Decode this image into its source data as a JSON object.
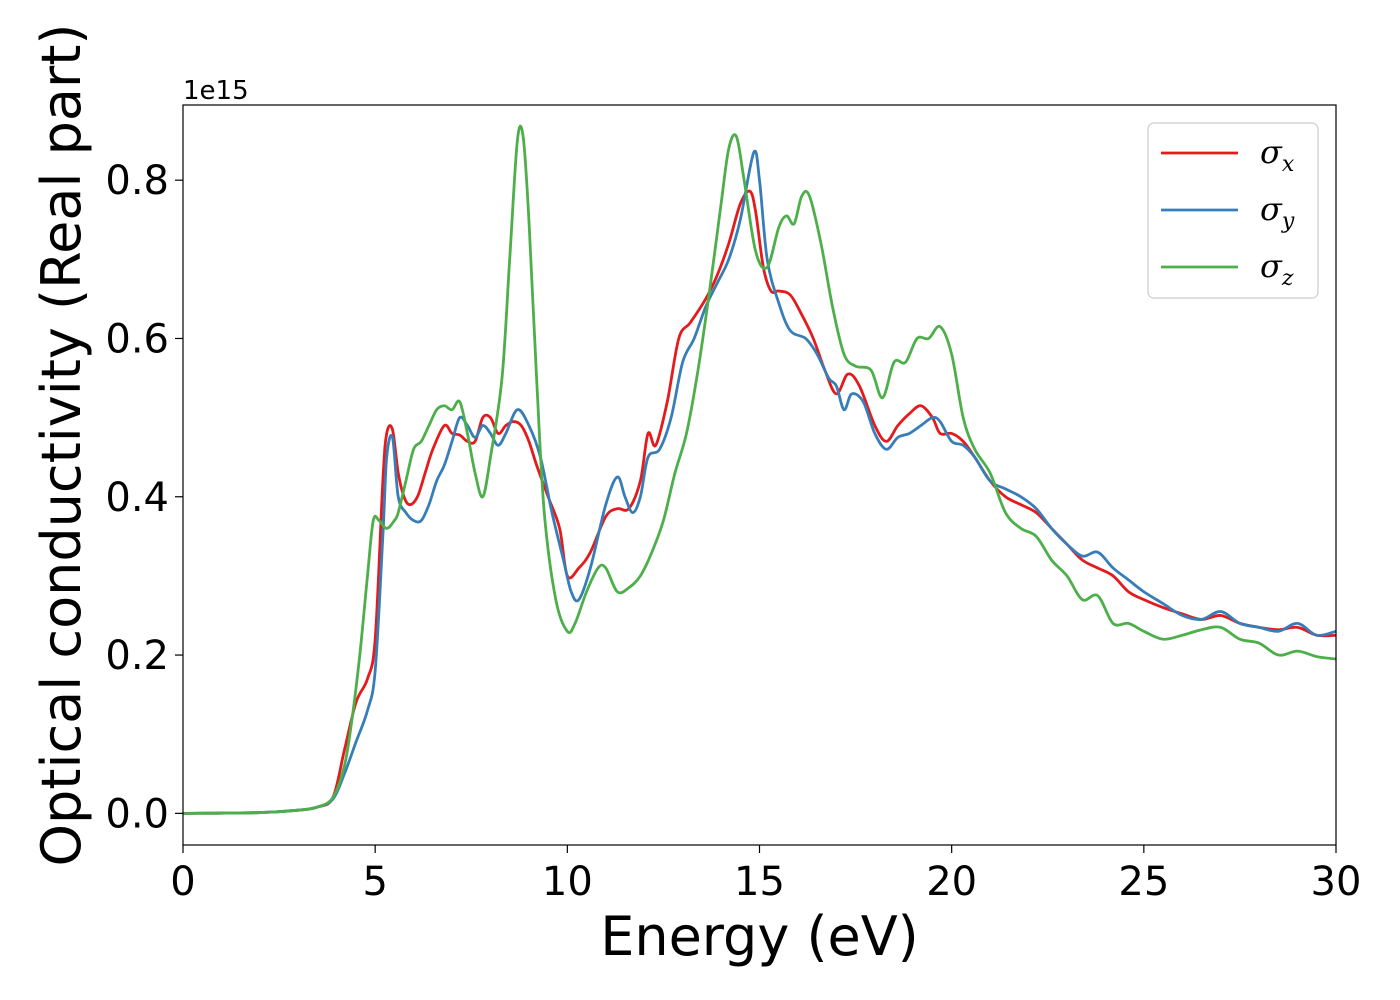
{
  "chart_data": {
    "type": "line",
    "title": "",
    "xlabel": "Energy (eV)",
    "ylabel": "Optical conductivity (Real part)",
    "y_offset_label": "1e15",
    "xlim": [
      0,
      30
    ],
    "ylim": [
      -0.04,
      0.895
    ],
    "xticks": [
      0,
      5,
      10,
      15,
      20,
      25,
      30
    ],
    "xtick_labels": [
      "0",
      "5",
      "10",
      "15",
      "20",
      "25",
      "30"
    ],
    "yticks": [
      0.0,
      0.2,
      0.4,
      0.6,
      0.8
    ],
    "ytick_labels": [
      "0.0",
      "0.2",
      "0.4",
      "0.6",
      "0.8"
    ],
    "grid": false,
    "legend_position": "top-right",
    "series": [
      {
        "name": "σx",
        "symbol": "σ",
        "subscript": "x",
        "color": "#e41a1c",
        "x": [
          0,
          2,
          3,
          3.5,
          3.9,
          4.2,
          4.5,
          4.8,
          5.0,
          5.2,
          5.3,
          5.45,
          5.6,
          5.75,
          5.9,
          6.1,
          6.3,
          6.5,
          6.8,
          7.0,
          7.2,
          7.4,
          7.6,
          7.8,
          8.0,
          8.2,
          8.4,
          8.6,
          8.8,
          9.0,
          9.2,
          9.5,
          9.8,
          10.0,
          10.3,
          10.6,
          11.0,
          11.3,
          11.6,
          11.9,
          12.1,
          12.3,
          12.6,
          12.9,
          13.2,
          13.6,
          13.9,
          14.2,
          14.5,
          14.75,
          14.9,
          15.1,
          15.3,
          15.5,
          15.8,
          16.1,
          16.4,
          16.7,
          17.0,
          17.3,
          17.6,
          18.0,
          18.3,
          18.6,
          18.9,
          19.2,
          19.5,
          19.7,
          20.0,
          20.3,
          20.6,
          21.0,
          21.4,
          21.8,
          22.2,
          22.6,
          23.0,
          23.4,
          23.8,
          24.2,
          24.6,
          25.0,
          25.5,
          26.0,
          26.5,
          27.0,
          27.5,
          28.0,
          28.5,
          29.0,
          29.5,
          30.0
        ],
        "values": [
          0.0,
          0.001,
          0.004,
          0.008,
          0.02,
          0.08,
          0.14,
          0.17,
          0.22,
          0.42,
          0.48,
          0.485,
          0.43,
          0.4,
          0.39,
          0.4,
          0.43,
          0.46,
          0.49,
          0.48,
          0.478,
          0.47,
          0.47,
          0.5,
          0.5,
          0.48,
          0.49,
          0.495,
          0.49,
          0.47,
          0.44,
          0.4,
          0.36,
          0.3,
          0.31,
          0.33,
          0.375,
          0.385,
          0.385,
          0.42,
          0.48,
          0.465,
          0.52,
          0.6,
          0.62,
          0.65,
          0.68,
          0.72,
          0.77,
          0.786,
          0.76,
          0.69,
          0.66,
          0.66,
          0.655,
          0.63,
          0.6,
          0.56,
          0.53,
          0.555,
          0.54,
          0.49,
          0.47,
          0.49,
          0.505,
          0.515,
          0.5,
          0.48,
          0.48,
          0.47,
          0.45,
          0.42,
          0.4,
          0.39,
          0.38,
          0.36,
          0.34,
          0.32,
          0.31,
          0.3,
          0.28,
          0.27,
          0.26,
          0.252,
          0.245,
          0.25,
          0.24,
          0.235,
          0.232,
          0.235,
          0.225,
          0.225
        ]
      },
      {
        "name": "σy",
        "symbol": "σ",
        "subscript": "y",
        "color": "#377eb8",
        "x": [
          0,
          2,
          3,
          3.5,
          3.9,
          4.2,
          4.5,
          4.8,
          5.0,
          5.2,
          5.3,
          5.45,
          5.6,
          5.8,
          6.0,
          6.2,
          6.4,
          6.6,
          6.8,
          7.0,
          7.2,
          7.4,
          7.6,
          7.8,
          8.0,
          8.2,
          8.4,
          8.7,
          9.0,
          9.3,
          9.6,
          9.9,
          10.1,
          10.3,
          10.6,
          11.0,
          11.3,
          11.5,
          11.7,
          11.9,
          12.1,
          12.4,
          12.7,
          13.0,
          13.3,
          13.6,
          13.9,
          14.2,
          14.5,
          14.85,
          15.0,
          15.2,
          15.5,
          15.8,
          16.2,
          16.5,
          16.8,
          17.0,
          17.2,
          17.4,
          17.7,
          18.0,
          18.3,
          18.6,
          18.9,
          19.2,
          19.5,
          19.7,
          20.0,
          20.3,
          20.6,
          21.0,
          21.4,
          21.8,
          22.2,
          22.6,
          23.0,
          23.4,
          23.8,
          24.2,
          24.6,
          25.0,
          25.5,
          26.0,
          26.5,
          27.0,
          27.5,
          28.0,
          28.5,
          29.0,
          29.5,
          30.0
        ],
        "values": [
          0.0,
          0.001,
          0.004,
          0.008,
          0.018,
          0.05,
          0.09,
          0.13,
          0.18,
          0.35,
          0.45,
          0.475,
          0.4,
          0.38,
          0.37,
          0.37,
          0.39,
          0.42,
          0.44,
          0.47,
          0.5,
          0.49,
          0.475,
          0.49,
          0.48,
          0.465,
          0.48,
          0.51,
          0.49,
          0.45,
          0.38,
          0.32,
          0.28,
          0.27,
          0.31,
          0.39,
          0.425,
          0.4,
          0.38,
          0.4,
          0.45,
          0.46,
          0.5,
          0.57,
          0.6,
          0.64,
          0.67,
          0.7,
          0.75,
          0.835,
          0.8,
          0.7,
          0.645,
          0.61,
          0.6,
          0.58,
          0.55,
          0.54,
          0.51,
          0.53,
          0.52,
          0.48,
          0.46,
          0.475,
          0.48,
          0.49,
          0.5,
          0.495,
          0.47,
          0.465,
          0.45,
          0.42,
          0.41,
          0.4,
          0.385,
          0.36,
          0.34,
          0.325,
          0.33,
          0.31,
          0.295,
          0.28,
          0.265,
          0.25,
          0.245,
          0.255,
          0.24,
          0.235,
          0.23,
          0.24,
          0.225,
          0.23
        ]
      },
      {
        "name": "σz",
        "symbol": "σ",
        "subscript": "z",
        "color": "#4daf4a",
        "x": [
          0,
          2,
          3,
          3.5,
          3.9,
          4.2,
          4.4,
          4.6,
          4.8,
          4.95,
          5.1,
          5.3,
          5.5,
          5.6,
          5.8,
          6.0,
          6.2,
          6.4,
          6.6,
          6.8,
          7.0,
          7.2,
          7.4,
          7.6,
          7.8,
          8.0,
          8.3,
          8.5,
          8.7,
          8.85,
          9.0,
          9.2,
          9.4,
          9.7,
          10.0,
          10.2,
          10.5,
          10.8,
          11.0,
          11.3,
          11.6,
          11.9,
          12.2,
          12.5,
          12.8,
          13.1,
          13.4,
          13.7,
          14.0,
          14.2,
          14.4,
          14.6,
          14.9,
          15.2,
          15.5,
          15.7,
          15.9,
          16.1,
          16.3,
          16.6,
          16.9,
          17.2,
          17.5,
          17.9,
          18.2,
          18.5,
          18.8,
          19.1,
          19.4,
          19.7,
          20.0,
          20.3,
          20.6,
          21.0,
          21.4,
          21.8,
          22.2,
          22.6,
          23.0,
          23.4,
          23.8,
          24.2,
          24.6,
          25.0,
          25.5,
          26.0,
          26.5,
          27.0,
          27.5,
          28.0,
          28.5,
          29.0,
          29.5,
          30.0
        ],
        "values": [
          0.0,
          0.001,
          0.004,
          0.008,
          0.02,
          0.06,
          0.12,
          0.2,
          0.3,
          0.37,
          0.37,
          0.36,
          0.37,
          0.38,
          0.42,
          0.46,
          0.47,
          0.49,
          0.51,
          0.515,
          0.51,
          0.52,
          0.48,
          0.43,
          0.4,
          0.45,
          0.55,
          0.7,
          0.85,
          0.855,
          0.75,
          0.55,
          0.38,
          0.27,
          0.23,
          0.24,
          0.28,
          0.31,
          0.31,
          0.28,
          0.285,
          0.3,
          0.33,
          0.37,
          0.43,
          0.48,
          0.56,
          0.66,
          0.77,
          0.84,
          0.855,
          0.8,
          0.71,
          0.69,
          0.74,
          0.755,
          0.745,
          0.78,
          0.78,
          0.72,
          0.64,
          0.58,
          0.565,
          0.56,
          0.525,
          0.57,
          0.57,
          0.6,
          0.6,
          0.615,
          0.58,
          0.5,
          0.46,
          0.43,
          0.38,
          0.36,
          0.35,
          0.32,
          0.3,
          0.27,
          0.275,
          0.24,
          0.24,
          0.23,
          0.22,
          0.225,
          0.232,
          0.235,
          0.22,
          0.215,
          0.2,
          0.205,
          0.198,
          0.195
        ]
      }
    ]
  }
}
